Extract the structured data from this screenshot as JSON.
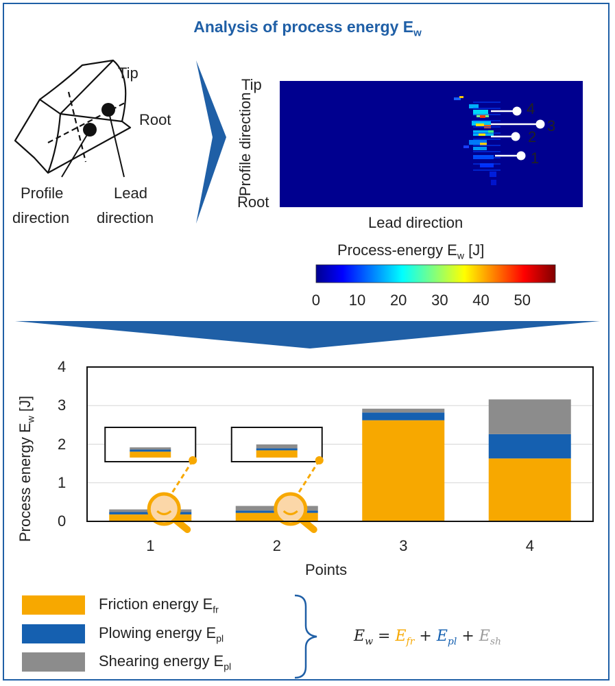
{
  "header": {
    "title": "Analysis of process energy E",
    "title_sub": "w"
  },
  "colors": {
    "friction": "#f7a800",
    "plowing": "#1560b0",
    "shearing": "#8c8c8c",
    "accent": "#1f5fa6"
  },
  "diagram": {
    "tip": "Tip",
    "root": "Root",
    "profile_line1": "Profile",
    "profile_line2": "direction",
    "lead_line1": "Lead",
    "lead_line2": "direction"
  },
  "heatmap": {
    "tip": "Tip",
    "root": "Root",
    "y_label": "Profile direction",
    "x_label": "Lead direction",
    "points": [
      "4",
      "3",
      "2",
      "1"
    ],
    "colorbar_title": "Process-energy E",
    "colorbar_sub": "w",
    "colorbar_unit": "[J]",
    "colorbar_ticks": [
      "0",
      "10",
      "20",
      "30",
      "40",
      "50"
    ],
    "colorbar_range": [
      0,
      58
    ]
  },
  "chart_data": {
    "type": "bar",
    "stacked": true,
    "categories": [
      "1",
      "2",
      "3",
      "4"
    ],
    "series": [
      {
        "name": "Friction energy E_fr",
        "values": [
          0.18,
          0.22,
          2.62,
          1.63
        ]
      },
      {
        "name": "Plowing energy E_pl",
        "values": [
          0.06,
          0.06,
          0.2,
          0.63
        ]
      },
      {
        "name": "Shearing energy E_pl",
        "values": [
          0.07,
          0.12,
          0.1,
          0.9
        ]
      }
    ],
    "ylim": [
      0,
      4
    ],
    "yticks": [
      "0",
      "1",
      "2",
      "3",
      "4"
    ],
    "xlabel": "Points",
    "ylabel": "Process energy E",
    "ylabel_sub": "w",
    "ylabel_unit": "[J]",
    "grid": true
  },
  "legend": [
    {
      "label": "Friction energy E",
      "sub": "fr"
    },
    {
      "label": "Plowing energy E",
      "sub": "pl"
    },
    {
      "label": "Shearing energy E",
      "sub": "pl"
    }
  ],
  "formula": {
    "lhs": "E",
    "lhs_sub": "w",
    "eq": " = ",
    "t1": "E",
    "t1_sub": "fr",
    "plus1": " + ",
    "t2": "E",
    "t2_sub": "pl",
    "plus2": " + ",
    "t3": "E",
    "t3_sub": "sh"
  }
}
